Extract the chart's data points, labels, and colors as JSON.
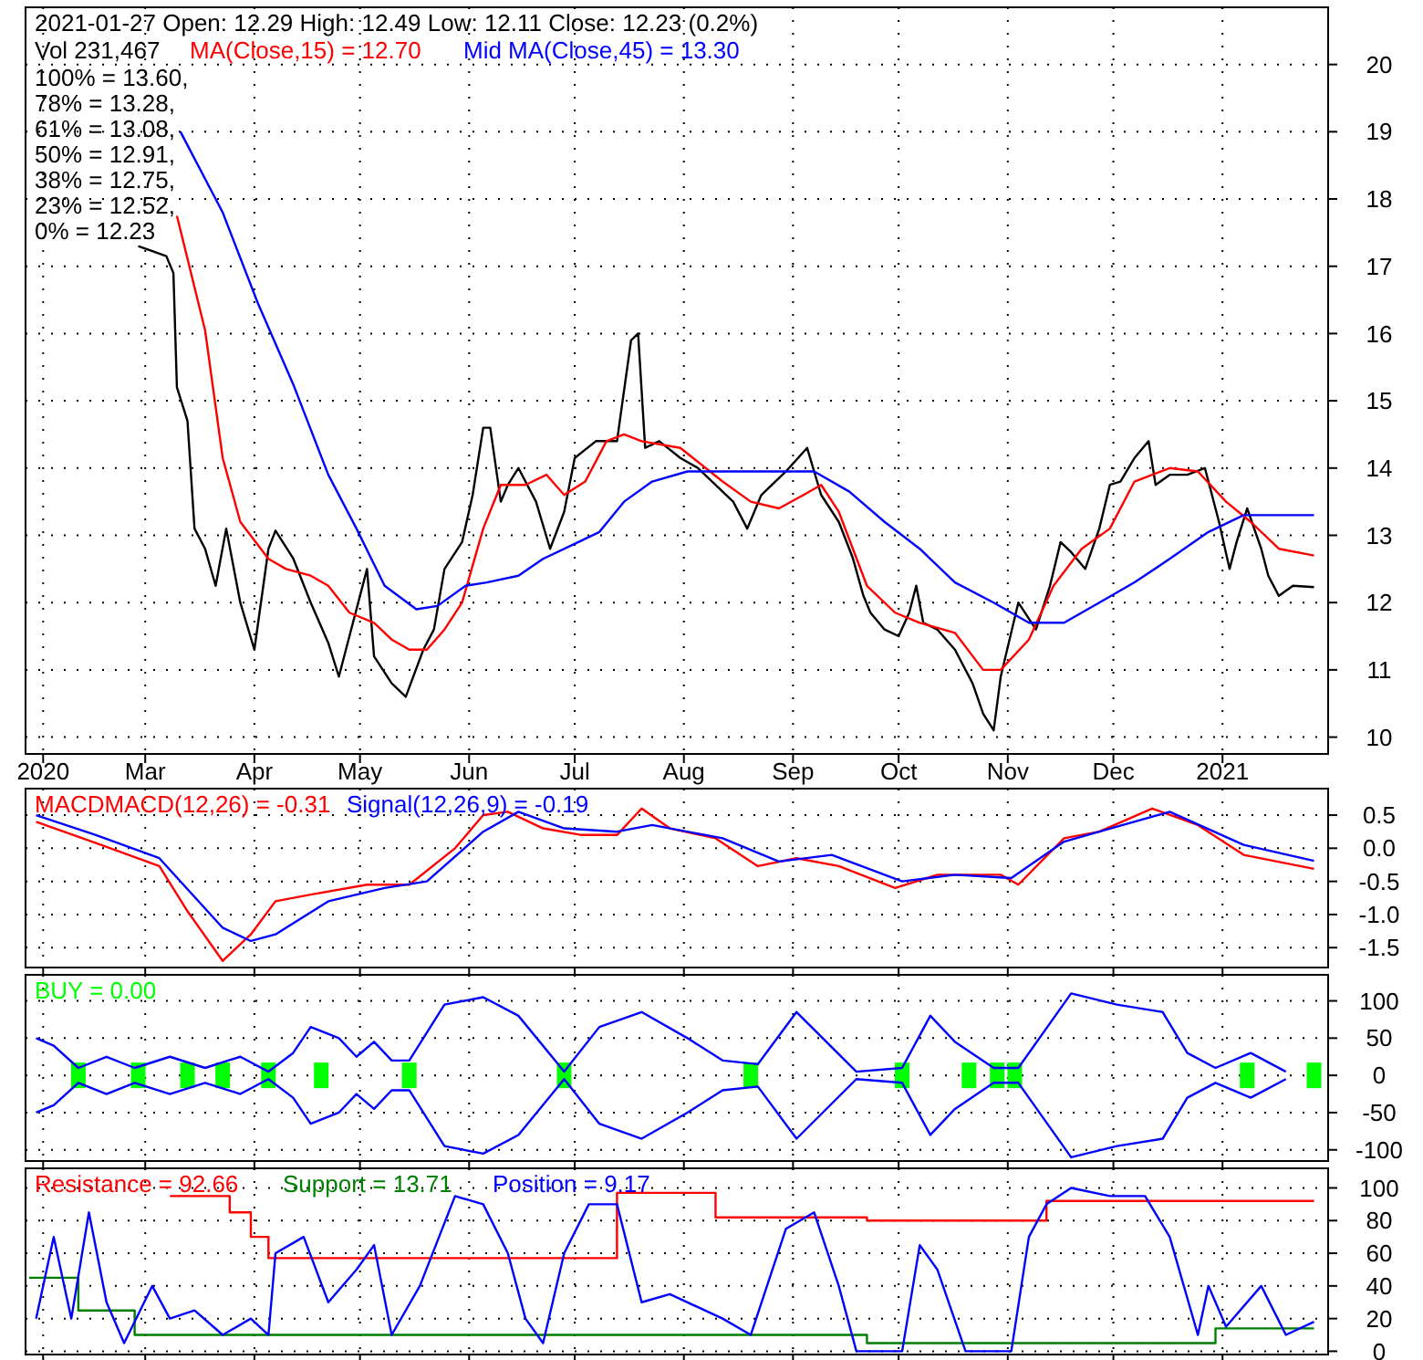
{
  "chart_data": [
    {
      "type": "line",
      "title": "2021-01-27 Open: 12.29 High: 12.49 Low: 12.11 Close: 12.23 (0.2%)",
      "subtitle": "Vol 231,467",
      "legend": "top left",
      "grid": true,
      "annotations": [
        "100% = 13.60,",
        "78% = 13.28,",
        "61% = 13.08,",
        "50% = 12.91,",
        "38% = 12.75,",
        "23% = 12.52,",
        "0% = 12.23"
      ],
      "xlim": [
        "2020-01-27",
        "2021-01-31"
      ],
      "ylim": [
        9.75,
        20.85
      ],
      "yticks": [
        10,
        11,
        12,
        13,
        14,
        15,
        16,
        17,
        18,
        19,
        20
      ],
      "xticks": [
        {
          "value": "2020-02-01",
          "label": "2020"
        },
        {
          "value": "2020-03-01",
          "label": "Mar"
        },
        {
          "value": "2020-04-01",
          "label": "Apr"
        },
        {
          "value": "2020-05-01",
          "label": "May"
        },
        {
          "value": "2020-06-01",
          "label": "Jun"
        },
        {
          "value": "2020-07-01",
          "label": "Jul"
        },
        {
          "value": "2020-08-01",
          "label": "Aug"
        },
        {
          "value": "2020-09-01",
          "label": "Sep"
        },
        {
          "value": "2020-10-01",
          "label": "Oct"
        },
        {
          "value": "2020-11-01",
          "label": "Nov"
        },
        {
          "value": "2020-12-01",
          "label": "Dec"
        },
        {
          "value": "2021-01-01",
          "label": "2021"
        }
      ],
      "series": [
        {
          "color": "#000000",
          "x": [
            "2020-02-28",
            "2020-03-07",
            "2020-03-09",
            "2020-03-10",
            "2020-03-13",
            "2020-03-15",
            "2020-03-18",
            "2020-03-21",
            "2020-03-24",
            "2020-03-28",
            "2020-04-01",
            "2020-04-05",
            "2020-04-07",
            "2020-04-12",
            "2020-04-17",
            "2020-04-22",
            "2020-04-25",
            "2020-04-29",
            "2020-05-03",
            "2020-05-05",
            "2020-05-10",
            "2020-05-14",
            "2020-05-19",
            "2020-05-22",
            "2020-05-25",
            "2020-05-30",
            "2020-06-02",
            "2020-06-05",
            "2020-06-07",
            "2020-06-10",
            "2020-06-12",
            "2020-06-15",
            "2020-06-20",
            "2020-06-24",
            "2020-06-28",
            "2020-07-01",
            "2020-07-07",
            "2020-07-13",
            "2020-07-17",
            "2020-07-19",
            "2020-07-21",
            "2020-07-25",
            "2020-07-31",
            "2020-08-05",
            "2020-08-15",
            "2020-08-19",
            "2020-08-23",
            "2020-08-30",
            "2020-09-05",
            "2020-09-07",
            "2020-09-09",
            "2020-09-14",
            "2020-09-18",
            "2020-09-21",
            "2020-09-23",
            "2020-09-27",
            "2020-10-01",
            "2020-10-04",
            "2020-10-06",
            "2020-10-08",
            "2020-10-12",
            "2020-10-17",
            "2020-10-22",
            "2020-10-25",
            "2020-10-28",
            "2020-10-30",
            "2020-11-04",
            "2020-11-09",
            "2020-11-13",
            "2020-11-16",
            "2020-11-19",
            "2020-11-23",
            "2020-11-27",
            "2020-11-30",
            "2020-12-03",
            "2020-12-07",
            "2020-12-11",
            "2020-12-13",
            "2020-12-17",
            "2020-12-22",
            "2020-12-27",
            "2020-12-29",
            "2020-12-31",
            "2021-01-03",
            "2021-01-05",
            "2021-01-08",
            "2021-01-12",
            "2021-01-14",
            "2021-01-17",
            "2021-01-21",
            "2021-01-27"
          ],
          "values": [
            17.3,
            17.15,
            16.9,
            15.2,
            14.7,
            13.1,
            12.8,
            12.25,
            13.1,
            12.0,
            11.3,
            12.8,
            13.07,
            12.66,
            12.0,
            11.4,
            10.9,
            11.7,
            12.5,
            11.2,
            10.8,
            10.6,
            11.3,
            11.6,
            12.5,
            12.9,
            13.6,
            14.6,
            14.6,
            13.5,
            13.75,
            14.0,
            13.5,
            12.8,
            13.35,
            14.15,
            14.4,
            14.4,
            15.9,
            16.0,
            14.3,
            14.4,
            14.15,
            14.0,
            13.5,
            13.1,
            13.6,
            13.95,
            14.3,
            13.95,
            13.6,
            13.2,
            12.66,
            12.1,
            11.85,
            11.6,
            11.5,
            11.85,
            12.25,
            11.7,
            11.6,
            11.3,
            10.8,
            10.35,
            10.1,
            10.9,
            12.0,
            11.6,
            12.25,
            12.9,
            12.75,
            12.5,
            13.1,
            13.75,
            13.8,
            14.15,
            14.4,
            13.75,
            13.9,
            13.9,
            14.0,
            13.6,
            13.2,
            12.5,
            12.9,
            13.4,
            12.8,
            12.4,
            12.1,
            12.25,
            12.23
          ]
        },
        {
          "name": "MA(Close,15) = 12.70",
          "color": "#ff0000",
          "x": [
            "2020-03-10",
            "2020-03-18",
            "2020-03-23",
            "2020-03-28",
            "2020-04-05",
            "2020-04-10",
            "2020-04-17",
            "2020-04-22",
            "2020-04-28",
            "2020-05-05",
            "2020-05-10",
            "2020-05-15",
            "2020-05-20",
            "2020-05-25",
            "2020-05-30",
            "2020-06-05",
            "2020-06-10",
            "2020-06-17",
            "2020-06-23",
            "2020-06-28",
            "2020-07-04",
            "2020-07-10",
            "2020-07-15",
            "2020-07-20",
            "2020-07-31",
            "2020-08-12",
            "2020-08-20",
            "2020-08-28",
            "2020-09-04",
            "2020-09-09",
            "2020-09-14",
            "2020-09-22",
            "2020-09-30",
            "2020-10-07",
            "2020-10-17",
            "2020-10-25",
            "2020-10-30",
            "2020-11-07",
            "2020-11-14",
            "2020-11-22",
            "2020-11-30",
            "2020-12-07",
            "2020-12-17",
            "2020-12-25",
            "2021-01-02",
            "2021-01-09",
            "2021-01-17",
            "2021-01-27"
          ],
          "values": [
            17.75,
            16.05,
            14.15,
            13.2,
            12.65,
            12.5,
            12.4,
            12.25,
            11.85,
            11.7,
            11.45,
            11.3,
            11.3,
            11.6,
            12.0,
            13.1,
            13.75,
            13.75,
            13.9,
            13.6,
            13.8,
            14.4,
            14.5,
            14.4,
            14.3,
            13.8,
            13.5,
            13.4,
            13.6,
            13.75,
            13.35,
            12.25,
            11.85,
            11.7,
            11.55,
            11.0,
            11.0,
            11.45,
            12.25,
            12.8,
            13.1,
            13.8,
            14.0,
            13.95,
            13.5,
            13.2,
            12.8,
            12.7
          ]
        },
        {
          "name": "Mid MA(Close,45) = 13.30",
          "color": "#0000ff",
          "x": [
            "2020-03-11",
            "2020-03-23",
            "2020-04-02",
            "2020-04-12",
            "2020-04-22",
            "2020-04-30",
            "2020-05-08",
            "2020-05-17",
            "2020-05-23",
            "2020-05-31",
            "2020-06-06",
            "2020-06-15",
            "2020-06-22",
            "2020-06-30",
            "2020-07-08",
            "2020-07-15",
            "2020-07-23",
            "2020-08-02",
            "2020-08-12",
            "2020-08-22",
            "2020-09-07",
            "2020-09-17",
            "2020-09-27",
            "2020-10-07",
            "2020-10-17",
            "2020-10-28",
            "2020-11-07",
            "2020-11-17",
            "2020-11-27",
            "2020-12-07",
            "2020-12-17",
            "2020-12-28",
            "2021-01-07",
            "2021-01-27"
          ],
          "values": [
            19.0,
            17.8,
            16.45,
            15.25,
            13.9,
            13.1,
            12.25,
            11.9,
            11.95,
            12.25,
            12.3,
            12.4,
            12.65,
            12.85,
            13.05,
            13.5,
            13.8,
            13.95,
            13.95,
            13.95,
            13.95,
            13.65,
            13.2,
            12.8,
            12.3,
            12.0,
            11.7,
            11.7,
            12.0,
            12.3,
            12.65,
            13.05,
            13.3,
            13.3
          ]
        }
      ]
    },
    {
      "type": "line",
      "legend": "top left",
      "grid": true,
      "tick_labels": "y",
      "xlim": [
        "2020-01-27",
        "2021-01-31"
      ],
      "ylim": [
        -1.8,
        0.9
      ],
      "yticks": [
        0.5,
        {
          "value": 0,
          "label": "0.0"
        },
        -0.5,
        {
          "value": -1,
          "label": "-1.0"
        },
        -1.5
      ],
      "xticks": [
        "2020-02-01",
        "2020-03-01",
        "2020-04-01",
        "2020-05-01",
        "2020-06-01",
        "2020-07-01",
        "2020-08-01",
        "2020-09-01",
        "2020-10-01",
        "2020-11-01",
        "2020-12-01",
        "2021-01-01"
      ],
      "series": [
        {
          "name": "MACDMACD(12,26) = -0.31",
          "color": "#ff0000",
          "x": [
            "2020-01-30",
            "2020-02-16",
            "2020-03-05",
            "2020-03-13",
            "2020-03-23",
            "2020-03-31",
            "2020-04-07",
            "2020-04-17",
            "2020-05-03",
            "2020-05-15",
            "2020-05-28",
            "2020-06-05",
            "2020-06-12",
            "2020-06-22",
            "2020-07-03",
            "2020-07-13",
            "2020-07-20",
            "2020-07-28",
            "2020-08-10",
            "2020-08-22",
            "2020-09-02",
            "2020-09-14",
            "2020-09-30",
            "2020-10-12",
            "2020-10-30",
            "2020-11-04",
            "2020-11-17",
            "2020-11-27",
            "2020-12-12",
            "2020-12-25",
            "2021-01-07",
            "2021-01-27"
          ],
          "values": [
            0.4,
            0.08,
            -0.27,
            -0.95,
            -1.7,
            -1.3,
            -0.8,
            -0.7,
            -0.55,
            -0.55,
            0.0,
            0.5,
            0.55,
            0.3,
            0.2,
            0.2,
            0.6,
            0.3,
            0.15,
            -0.27,
            -0.15,
            -0.27,
            -0.6,
            -0.4,
            -0.4,
            -0.55,
            0.15,
            0.25,
            0.6,
            0.35,
            -0.1,
            -0.31
          ]
        },
        {
          "name": "Signal(12,26,9) = -0.19",
          "color": "#0000ff",
          "x": [
            "2020-01-30",
            "2020-02-16",
            "2020-03-05",
            "2020-03-23",
            "2020-03-31",
            "2020-04-07",
            "2020-04-22",
            "2020-05-08",
            "2020-05-20",
            "2020-06-05",
            "2020-06-15",
            "2020-06-28",
            "2020-07-13",
            "2020-07-23",
            "2020-08-12",
            "2020-08-28",
            "2020-09-12",
            "2020-10-02",
            "2020-10-17",
            "2020-11-02",
            "2020-11-17",
            "2020-11-27",
            "2020-12-17",
            "2021-01-07",
            "2021-01-27"
          ],
          "values": [
            0.5,
            0.2,
            -0.15,
            -1.2,
            -1.4,
            -1.3,
            -0.8,
            -0.6,
            -0.5,
            0.25,
            0.55,
            0.3,
            0.25,
            0.35,
            0.15,
            -0.2,
            -0.1,
            -0.5,
            -0.4,
            -0.45,
            0.1,
            0.25,
            0.55,
            0.05,
            -0.19
          ]
        }
      ]
    },
    {
      "type": "line",
      "legend": "top left",
      "grid": true,
      "tick_labels": "y",
      "xlim": [
        "2020-01-27",
        "2021-01-31"
      ],
      "ylim": [
        -115,
        135
      ],
      "yticks": [
        100,
        50,
        0,
        -50,
        -100
      ],
      "xticks": [
        "2020-02-01",
        "2020-03-01",
        "2020-04-01",
        "2020-05-01",
        "2020-06-01",
        "2020-07-01",
        "2020-08-01",
        "2020-09-01",
        "2020-10-01",
        "2020-11-01",
        "2020-12-01",
        "2021-01-01"
      ],
      "series": [
        {
          "color": "#0000ff",
          "x": [
            "2020-01-30",
            "2020-02-04",
            "2020-02-11",
            "2020-02-19",
            "2020-02-27",
            "2020-03-08",
            "2020-03-18",
            "2020-03-28",
            "2020-04-05",
            "2020-04-12",
            "2020-04-17",
            "2020-04-25",
            "2020-04-30",
            "2020-05-05",
            "2020-05-10",
            "2020-05-15",
            "2020-05-25",
            "2020-06-05",
            "2020-06-15",
            "2020-06-28",
            "2020-07-08",
            "2020-07-20",
            "2020-08-02",
            "2020-08-12",
            "2020-08-22",
            "2020-09-02",
            "2020-09-19",
            "2020-10-02",
            "2020-10-10",
            "2020-10-17",
            "2020-10-28",
            "2020-11-04",
            "2020-11-19",
            "2020-12-02",
            "2020-12-15",
            "2020-12-22",
            "2020-12-30",
            "2021-01-09",
            "2021-01-19"
          ],
          "values": [
            50,
            40,
            10,
            25,
            10,
            25,
            10,
            25,
            5,
            30,
            65,
            50,
            25,
            45,
            20,
            20,
            95,
            105,
            80,
            5,
            65,
            85,
            50,
            20,
            15,
            85,
            5,
            10,
            80,
            45,
            10,
            10,
            110,
            95,
            85,
            30,
            10,
            30,
            5
          ]
        },
        {
          "color": "#0000ff",
          "x": [
            "2020-01-30",
            "2020-02-04",
            "2020-02-11",
            "2020-02-19",
            "2020-02-27",
            "2020-03-08",
            "2020-03-18",
            "2020-03-28",
            "2020-04-05",
            "2020-04-12",
            "2020-04-17",
            "2020-04-25",
            "2020-04-30",
            "2020-05-05",
            "2020-05-10",
            "2020-05-15",
            "2020-05-25",
            "2020-06-05",
            "2020-06-15",
            "2020-06-28",
            "2020-07-08",
            "2020-07-20",
            "2020-08-02",
            "2020-08-12",
            "2020-08-22",
            "2020-09-02",
            "2020-09-19",
            "2020-10-02",
            "2020-10-10",
            "2020-10-17",
            "2020-10-28",
            "2020-11-04",
            "2020-11-19",
            "2020-12-02",
            "2020-12-15",
            "2020-12-22",
            "2020-12-30",
            "2021-01-09",
            "2021-01-19"
          ],
          "values": [
            -50,
            -40,
            -10,
            -25,
            -10,
            -25,
            -10,
            -25,
            -5,
            -30,
            -65,
            -50,
            -25,
            -45,
            -20,
            -20,
            -95,
            -105,
            -80,
            -5,
            -65,
            -85,
            -50,
            -20,
            -15,
            -85,
            -5,
            -10,
            -80,
            -45,
            -10,
            -10,
            -110,
            -95,
            -85,
            -30,
            -10,
            -30,
            -5
          ]
        },
        {
          "name": "BUY = 0.00",
          "type": "scatter",
          "marker": "square",
          "color": "#00ff00",
          "x": [
            "2020-02-11",
            "2020-02-28",
            "2020-03-13",
            "2020-03-23",
            "2020-04-05",
            "2020-04-20",
            "2020-05-15",
            "2020-06-28",
            "2020-08-20",
            "2020-10-02",
            "2020-10-21",
            "2020-10-29",
            "2020-11-03",
            "2021-01-08",
            "2021-01-27"
          ],
          "values": [
            0,
            0,
            0,
            0,
            0,
            0,
            0,
            0,
            0,
            0,
            0,
            0,
            0,
            0,
            0
          ]
        }
      ]
    },
    {
      "type": "line",
      "legend": "top left",
      "grid": true,
      "tick_labels": "y",
      "xlim": [
        "2020-01-27",
        "2021-01-31"
      ],
      "ylim": [
        -2,
        112
      ],
      "yticks": [
        0,
        20,
        40,
        60,
        80,
        100
      ],
      "xticks": [
        "2020-02-01",
        "2020-03-01",
        "2020-04-01",
        "2020-05-01",
        "2020-06-01",
        "2020-07-01",
        "2020-08-01",
        "2020-09-01",
        "2020-10-01",
        "2020-11-01",
        "2020-12-01",
        "2021-01-01"
      ],
      "series": [
        {
          "name": "Resistance = 92.66",
          "type": "step",
          "color": "#ff0000",
          "x": [
            "2020-03-08",
            "2020-03-25",
            "2020-03-31",
            "2020-04-05",
            "2020-07-13",
            "2020-08-10",
            "2020-09-22",
            "2020-11-12",
            "2021-01-27"
          ],
          "values": [
            95,
            85,
            70,
            57,
            97,
            82,
            80,
            92,
            92
          ]
        },
        {
          "name": "Support = 13.71",
          "type": "step",
          "color": "#008000",
          "x": [
            "2020-01-28",
            "2020-02-11",
            "2020-02-27",
            "2020-09-22",
            "2020-12-30",
            "2021-01-27"
          ],
          "values": [
            45,
            25,
            10,
            5,
            14,
            14
          ]
        },
        {
          "name": "Position = 9.17",
          "color": "#0000ff",
          "x": [
            "2020-01-30",
            "2020-02-04",
            "2020-02-09",
            "2020-02-14",
            "2020-02-19",
            "2020-02-24",
            "2020-03-03",
            "2020-03-08",
            "2020-03-15",
            "2020-03-23",
            "2020-03-31",
            "2020-04-05",
            "2020-04-07",
            "2020-04-15",
            "2020-04-22",
            "2020-04-30",
            "2020-05-05",
            "2020-05-10",
            "2020-05-18",
            "2020-05-28",
            "2020-06-05",
            "2020-06-12",
            "2020-06-17",
            "2020-06-22",
            "2020-06-28",
            "2020-07-05",
            "2020-07-13",
            "2020-07-20",
            "2020-07-28",
            "2020-08-12",
            "2020-08-20",
            "2020-08-30",
            "2020-09-07",
            "2020-09-14",
            "2020-09-19",
            "2020-10-02",
            "2020-10-07",
            "2020-10-12",
            "2020-10-20",
            "2020-11-02",
            "2020-11-07",
            "2020-11-12",
            "2020-11-19",
            "2020-11-30",
            "2020-12-10",
            "2020-12-17",
            "2020-12-25",
            "2020-12-28",
            "2021-01-02",
            "2021-01-12",
            "2021-01-19",
            "2021-01-27"
          ],
          "values": [
            20,
            70,
            20,
            85,
            30,
            5,
            40,
            20,
            25,
            10,
            20,
            10,
            60,
            70,
            30,
            50,
            65,
            10,
            40,
            95,
            90,
            60,
            20,
            5,
            60,
            90,
            90,
            30,
            35,
            20,
            10,
            75,
            85,
            40,
            0,
            0,
            65,
            50,
            0,
            0,
            70,
            90,
            100,
            95,
            95,
            70,
            10,
            40,
            15,
            40,
            10,
            18
          ]
        }
      ]
    }
  ]
}
